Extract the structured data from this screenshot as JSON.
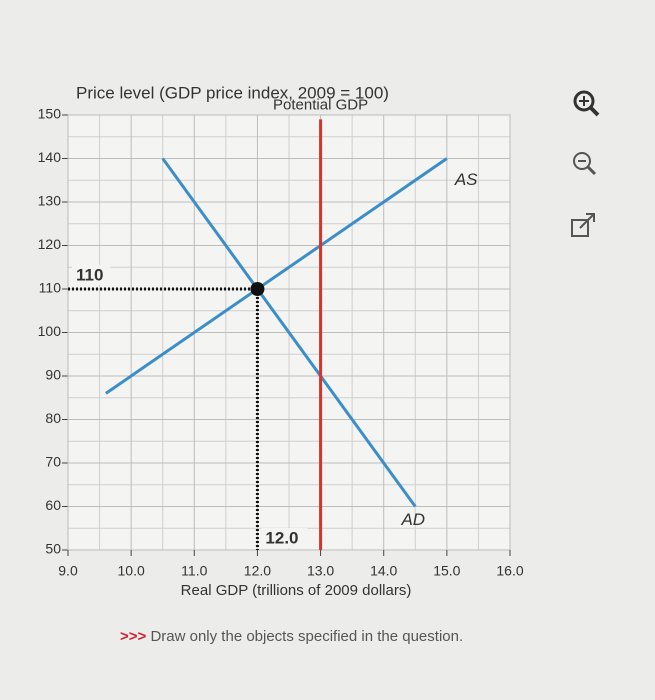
{
  "chart_data": {
    "type": "line",
    "title": "Price level (GDP price index, 2009 = 100)",
    "x_label": "Real GDP (trillions of 2009 dollars)",
    "xlim": [
      9.0,
      16.0
    ],
    "ylim": [
      50,
      150
    ],
    "xticks": [
      {
        "value": 9,
        "label": "9.0"
      },
      {
        "value": 10,
        "label": "10.0"
      },
      {
        "value": 11,
        "label": "11.0"
      },
      {
        "value": 12,
        "label": "12.0"
      },
      {
        "value": 13,
        "label": "13.0"
      },
      {
        "value": 14,
        "label": "14.0"
      },
      {
        "value": 15,
        "label": "15.0"
      },
      {
        "value": 16,
        "label": "16.0"
      }
    ],
    "yticks": [
      50,
      60,
      70,
      80,
      90,
      100,
      110,
      120,
      130,
      140,
      150
    ],
    "grid": true,
    "series": [
      {
        "name": "AS",
        "color": "#3b8ec8",
        "x": [
          9.6,
          15.0
        ],
        "values": [
          86,
          140
        ]
      },
      {
        "name": "AD",
        "color": "#3b8ec8",
        "x": [
          10.5,
          14.5
        ],
        "values": [
          140,
          60
        ]
      },
      {
        "name": "Potential GDP",
        "color": "#d9322b",
        "x": [
          13.0,
          13.0
        ],
        "values": [
          50,
          149
        ]
      }
    ],
    "equilibrium": {
      "x": 12.0,
      "y": 110,
      "color": "#111111"
    },
    "annotations": [
      "110",
      "12.0"
    ],
    "footer": "Draw only the objects specified in the question.",
    "footer_prefix": ">>>"
  }
}
